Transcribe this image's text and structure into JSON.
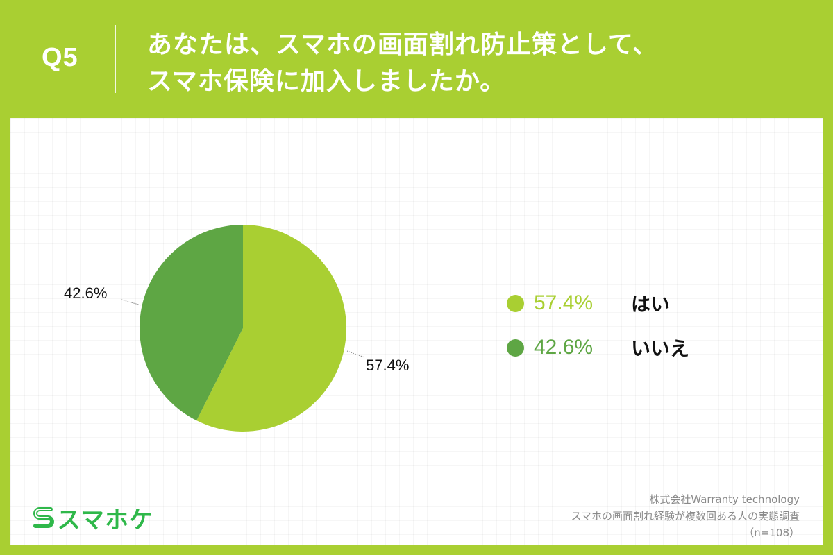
{
  "header": {
    "question_number": "Q5",
    "title_line1": "あなたは、スマホの画面割れ防止策として、",
    "title_line2": "スマホ保険に加入しましたか。"
  },
  "colors": {
    "background": "#a9cf32",
    "yes": "#a9cf32",
    "no": "#5ea644",
    "logo": "#2fb84a",
    "text": "#111111",
    "source_text": "#8a8a8a"
  },
  "chart_data": {
    "type": "pie",
    "title": "あなたは、スマホの画面割れ防止策として、スマホ保険に加入しましたか。",
    "categories": [
      "はい",
      "いいえ"
    ],
    "values": [
      57.4,
      42.6
    ],
    "unit": "%",
    "slice_labels": [
      "57.4%",
      "42.6%"
    ],
    "colors": [
      "#a9cf32",
      "#5ea644"
    ],
    "start_angle": "12 o'clock, clockwise",
    "legend_position": "right",
    "sample_size": "n=108"
  },
  "pie": {
    "labels": {
      "yes": "57.4%",
      "no": "42.6%"
    }
  },
  "legend": {
    "items": [
      {
        "pct": "57.4%",
        "label": "はい"
      },
      {
        "pct": "42.6%",
        "label": "いいえ"
      }
    ]
  },
  "footer": {
    "logo_text": "スマホケ",
    "source_line1": "株式会社Warranty technology",
    "source_line2": "スマホの画面割れ経験が複数回ある人の実態調査",
    "source_line3": "（n=108）"
  }
}
